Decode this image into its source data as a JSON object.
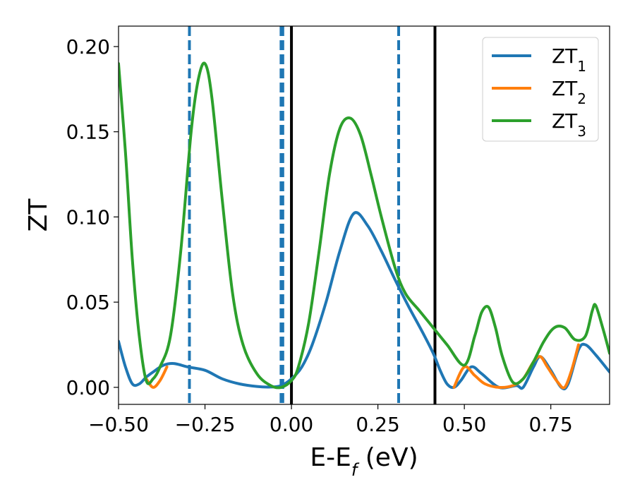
{
  "chart_data": {
    "type": "line",
    "xlabel": "E-E",
    "xlabel_sub": "f",
    "xlabel_unit": " (eV)",
    "ylabel": "ZT",
    "xlim": [
      -0.5,
      0.92
    ],
    "ylim": [
      -0.01,
      0.212
    ],
    "xticks": [
      -0.5,
      -0.25,
      0.0,
      0.25,
      0.5,
      0.75
    ],
    "xtick_labels": [
      "−0.50",
      "−0.25",
      "0.00",
      "0.25",
      "0.50",
      "0.75"
    ],
    "yticks": [
      0.0,
      0.05,
      0.1,
      0.15,
      0.2
    ],
    "ytick_labels": [
      "0.00",
      "0.05",
      "0.10",
      "0.15",
      "0.20"
    ],
    "grid": false,
    "legend_position": "top-right",
    "vlines": [
      {
        "x": -0.295,
        "style": "dashed",
        "color": "#1f77b4"
      },
      {
        "x": -0.03,
        "style": "dashed",
        "color": "#1f77b4"
      },
      {
        "x": -0.025,
        "style": "dashed",
        "color": "#1f77b4"
      },
      {
        "x": 0.0,
        "style": "solid",
        "color": "#000000"
      },
      {
        "x": 0.31,
        "style": "dashed",
        "color": "#1f77b4"
      },
      {
        "x": 0.415,
        "style": "solid",
        "color": "#000000"
      }
    ],
    "series": [
      {
        "name": "ZT",
        "sub": "1",
        "color": "#1f77b4",
        "x": [
          -0.5,
          -0.48,
          -0.46,
          -0.44,
          -0.42,
          -0.4,
          -0.37,
          -0.34,
          -0.3,
          -0.25,
          -0.2,
          -0.15,
          -0.1,
          -0.06,
          -0.03,
          0.0,
          0.03,
          0.06,
          0.1,
          0.14,
          0.18,
          0.22,
          0.26,
          0.3,
          0.34,
          0.38,
          0.41,
          0.43,
          0.45,
          0.47,
          0.49,
          0.52,
          0.55,
          0.6,
          0.65,
          0.67,
          0.7,
          0.72,
          0.75,
          0.78,
          0.8,
          0.83,
          0.85,
          0.88,
          0.92
        ],
        "y": [
          0.027,
          0.012,
          0.002,
          0.002,
          0.006,
          0.009,
          0.013,
          0.014,
          0.012,
          0.01,
          0.005,
          0.002,
          0.0005,
          0.0002,
          0.001,
          0.005,
          0.012,
          0.025,
          0.05,
          0.08,
          0.102,
          0.095,
          0.08,
          0.063,
          0.047,
          0.032,
          0.02,
          0.01,
          0.002,
          0.0,
          0.004,
          0.012,
          0.008,
          0.0,
          0.001,
          0.0,
          0.012,
          0.018,
          0.01,
          0.0,
          0.002,
          0.022,
          0.025,
          0.019,
          0.009
        ]
      },
      {
        "name": "ZT",
        "sub": "2",
        "color": "#ff7f0e",
        "x": [
          -0.42,
          -0.4,
          -0.38,
          -0.36,
          0.47,
          0.5,
          0.53,
          0.56,
          0.6,
          0.64,
          0.67,
          0.7,
          0.72,
          0.74,
          0.77,
          0.79,
          0.81,
          0.83
        ],
        "y": [
          0.005,
          0.0,
          0.004,
          0.012,
          0.0,
          0.012,
          0.007,
          0.002,
          0.0,
          0.001,
          0.005,
          0.015,
          0.018,
          0.012,
          0.003,
          0.0,
          0.01,
          0.025
        ]
      },
      {
        "name": "ZT",
        "sub": "3",
        "color": "#2ca02c",
        "x": [
          -0.5,
          -0.48,
          -0.46,
          -0.44,
          -0.42,
          -0.4,
          -0.38,
          -0.35,
          -0.32,
          -0.29,
          -0.27,
          -0.25,
          -0.23,
          -0.2,
          -0.17,
          -0.14,
          -0.1,
          -0.06,
          -0.03,
          0.0,
          0.02,
          0.05,
          0.08,
          0.11,
          0.14,
          0.17,
          0.2,
          0.23,
          0.26,
          0.3,
          0.33,
          0.37,
          0.41,
          0.45,
          0.5,
          0.53,
          0.55,
          0.57,
          0.59,
          0.61,
          0.64,
          0.67,
          0.7,
          0.73,
          0.76,
          0.79,
          0.82,
          0.85,
          0.87,
          0.88,
          0.9,
          0.92
        ],
        "y": [
          0.19,
          0.138,
          0.075,
          0.03,
          0.004,
          0.005,
          0.012,
          0.03,
          0.08,
          0.15,
          0.18,
          0.19,
          0.17,
          0.11,
          0.055,
          0.025,
          0.008,
          0.001,
          0.0,
          0.004,
          0.012,
          0.038,
          0.08,
          0.125,
          0.152,
          0.158,
          0.148,
          0.125,
          0.1,
          0.07,
          0.055,
          0.045,
          0.035,
          0.025,
          0.013,
          0.03,
          0.044,
          0.047,
          0.035,
          0.018,
          0.003,
          0.005,
          0.015,
          0.027,
          0.035,
          0.035,
          0.028,
          0.03,
          0.045,
          0.048,
          0.035,
          0.02
        ]
      }
    ]
  }
}
